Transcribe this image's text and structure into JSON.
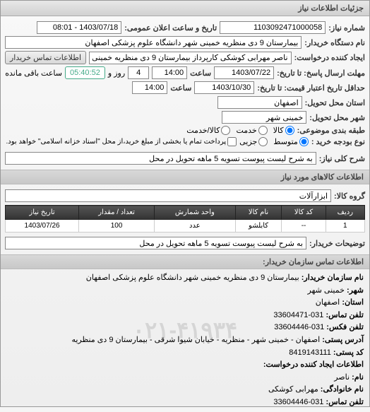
{
  "window": {
    "title": "جزئیات اطلاعات نیاز"
  },
  "header": {
    "req_no_label": "شماره نیاز:",
    "req_no": "1103092471000058",
    "date_label": "تاریخ و ساعت اعلان عمومی:",
    "date": "1403/07/18 - 08:01"
  },
  "buyer": {
    "label": "نام دستگاه خریدار:",
    "value": "بیمارستان 9 دی منظریه خمینی شهر دانشگاه علوم پزشکی اصفهان"
  },
  "requester": {
    "label": "ایجاد کننده درخواست:",
    "value": "ناصر مهرابی کوشکی کارپرداز بیمارستان 9 دی منظریه خمینی شهر دانشگاه علوم",
    "btn": "اطلاعات تماس خریدار"
  },
  "deadline": {
    "label1": "مهلت ارسال پاسخ: تا تاریخ:",
    "date": "1403/07/22",
    "label2": "ساعت",
    "time": "14:00",
    "remain_days": "4",
    "remain_label": "روز و",
    "remain_time": "05:40:52",
    "remain_suffix": "ساعت باقی مانده"
  },
  "validity": {
    "label1": "حداقل تاریخ اعتبار قیمت: تا تاریخ:",
    "date": "1403/10/30",
    "label2": "ساعت",
    "time": "14:00"
  },
  "province": {
    "label": "استان محل تحویل:",
    "value": "اصفهان"
  },
  "city": {
    "label": "شهر محل تحویل:",
    "value": "خمینی شهر"
  },
  "subject_type": {
    "label": "طبقه بندی موضوعی:",
    "opt1": "کالا",
    "opt2": "خدمت",
    "opt3": "کالا/خدمت",
    "selected": "opt1"
  },
  "buy_type": {
    "label": "نوع بودجه خرید :",
    "opt1": "متوسط",
    "opt2": "جزیی",
    "selected": "opt1",
    "note": "پرداخت تمام یا بخشی از مبلغ خرید،از محل \"اسناد خزانه اسلامی\" خواهد بود."
  },
  "desc": {
    "label": "شرح کلی نیاز:",
    "value": "به شرح لیست پیوست تسویه 5 ماهه تحویل در محل"
  },
  "goods_section": "اطلاعات کالاهای مورد نیاز",
  "group": {
    "label": "گروه کالا:",
    "value": "ابزارآلات"
  },
  "table": {
    "columns": [
      "ردیف",
      "کد کالا",
      "نام کالا",
      "واحد شمارش",
      "تعداد / مقدار",
      "تاریخ نیاز"
    ],
    "rows": [
      [
        "1",
        "--",
        "کابلشو",
        "عدد",
        "100",
        "1403/07/26"
      ]
    ]
  },
  "buyer_note": {
    "label": "توضیحات خریدار:",
    "value": "به شرح لیست پیوست تسویه 5 ماهه تحویل در محل"
  },
  "contact_section": "اطلاعات تماس سازمان خریدار:",
  "contact": {
    "org_label": "نام سازمان خریدار:",
    "org": "بیمارستان 9 دی منظریه خمینی شهر دانشگاه علوم پزشکی اصفهان",
    "city_label": "شهر:",
    "city": "خمینی شهر",
    "province_label": "استان:",
    "province": "اصفهان",
    "phone_label": "تلفن تماس:",
    "phone": "031-33604471",
    "fax_label": "تلفن فکس:",
    "fax": "031-33604446",
    "addr_label": "آدرس پستی:",
    "addr": "اصفهان - خمینی شهر - منظریه - خیابان شیوا شرقی - بیمارستان 9 دی منظریه",
    "postcode_label": "کد پستی:",
    "postcode": "8419143111",
    "creator_section": "اطلاعات ایجاد کننده درخواست:",
    "fname_label": "نام:",
    "fname": "ناصر",
    "lname_label": "نام خانوادگی:",
    "lname": "مهرابی کوشکی",
    "cphone_label": "تلفن تماس:",
    "cphone": "031-33604446"
  },
  "watermark": "۰۲۱-۴۱۹۳۴"
}
